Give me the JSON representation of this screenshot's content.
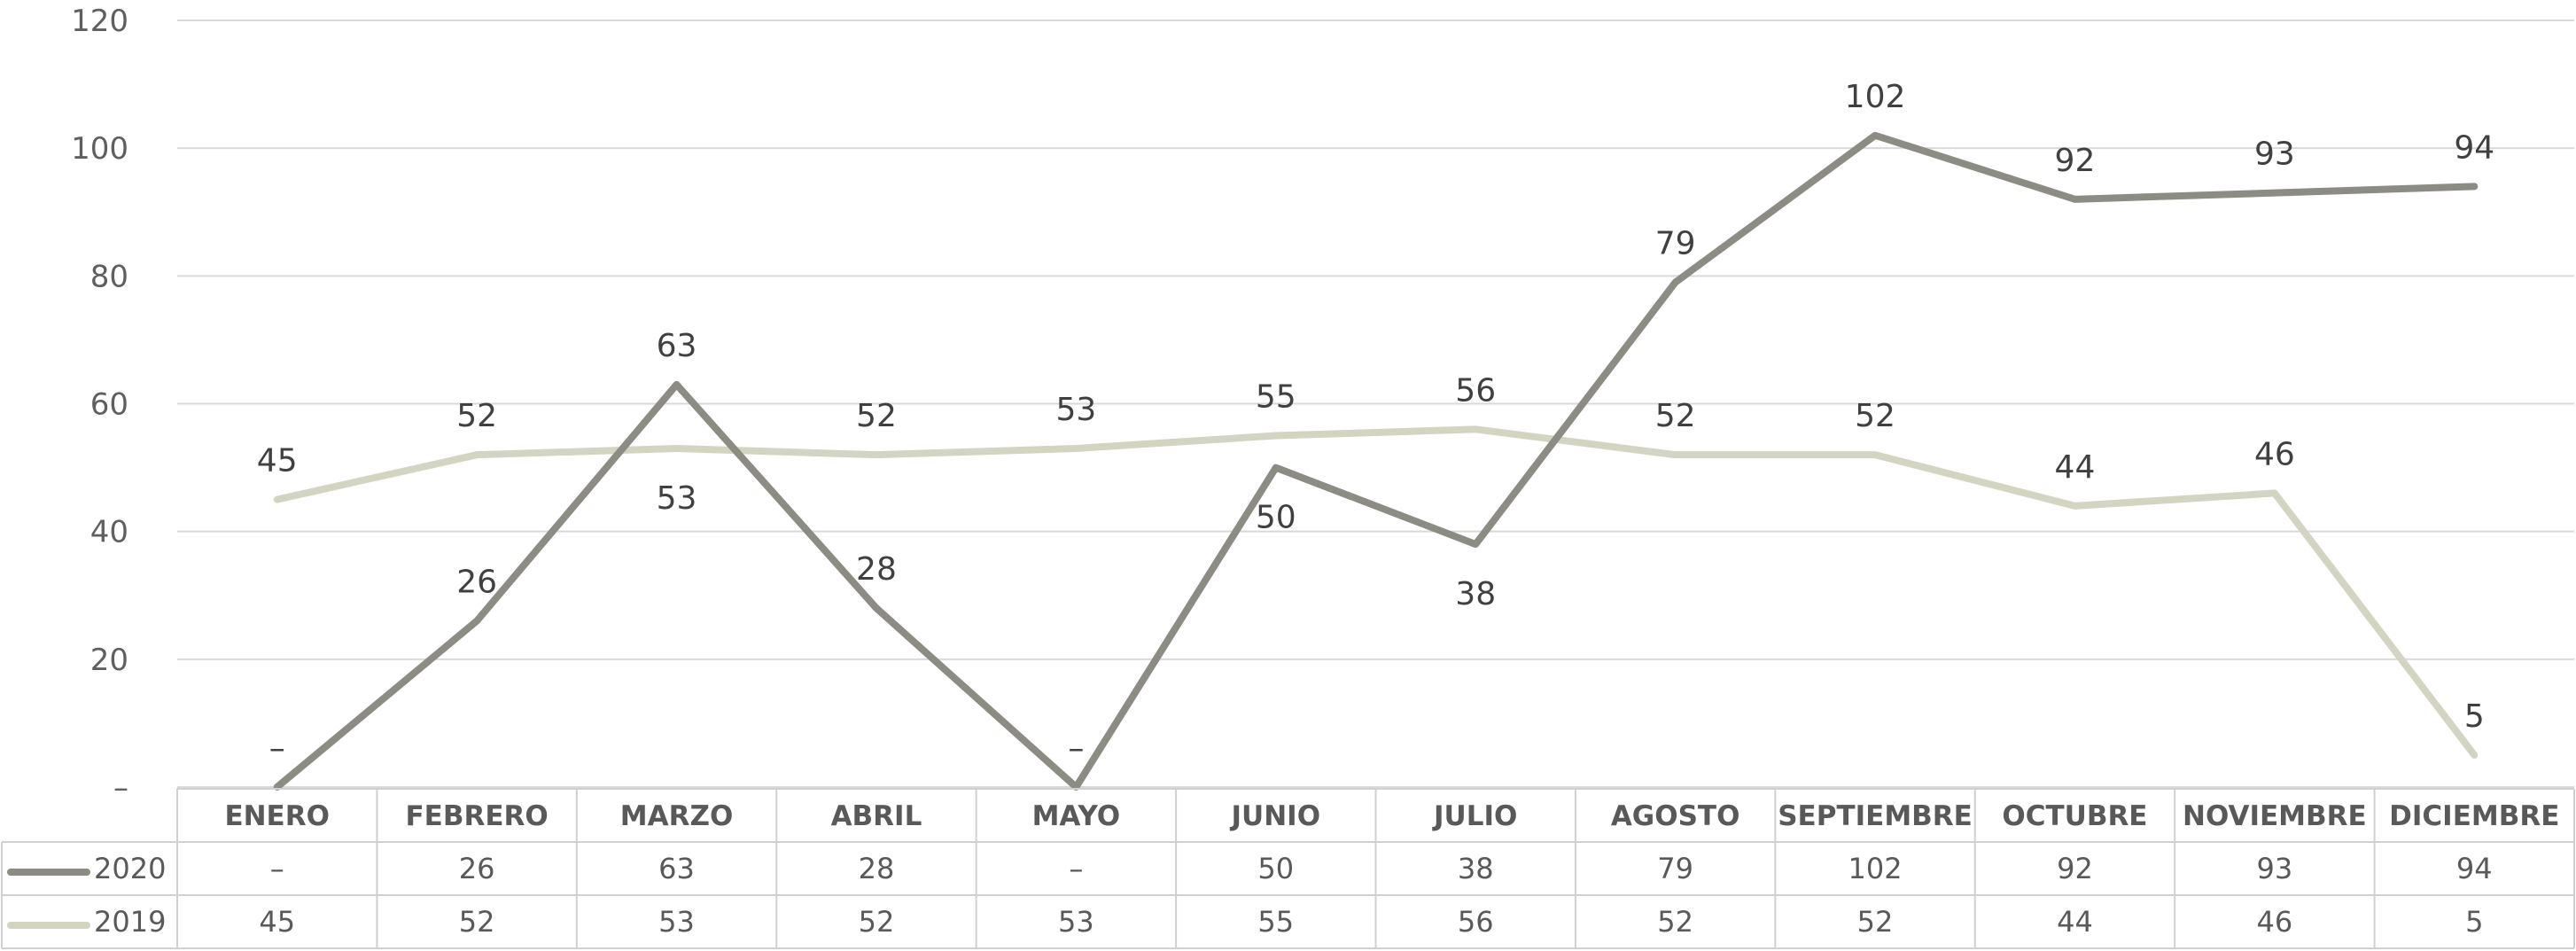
{
  "chart_data": {
    "type": "line",
    "title": "",
    "xlabel": "",
    "ylabel": "",
    "categories": [
      "ENERO",
      "FEBRERO",
      "MARZO",
      "ABRIL",
      "MAYO",
      "JUNIO",
      "JULIO",
      "AGOSTO",
      "SEPTIEMBRE",
      "OCTUBRE",
      "NOVIEMBRE",
      "DICIEMBRE"
    ],
    "y_ticks": [
      0,
      20,
      40,
      60,
      80,
      100,
      120
    ],
    "y_tick_labels": [
      "–",
      "20",
      "40",
      "60",
      "80",
      "100",
      "120"
    ],
    "ylim": [
      0,
      120
    ],
    "grid": true,
    "legend": "data-table",
    "series": [
      {
        "name": "2020",
        "color": "#8c8c84",
        "values": [
          0,
          26,
          63,
          28,
          0,
          50,
          38,
          79,
          102,
          92,
          93,
          94
        ],
        "labels": [
          "–",
          "26",
          "63",
          "28",
          "–",
          "50",
          "38",
          "79",
          "102",
          "92",
          "93",
          "94"
        ],
        "label_position": [
          "above",
          "above",
          "above",
          "above",
          "above",
          "below",
          "below",
          "above",
          "above",
          "above",
          "above",
          "above"
        ]
      },
      {
        "name": "2019",
        "color": "#d4d4c2",
        "values": [
          45,
          52,
          53,
          52,
          53,
          55,
          56,
          52,
          52,
          44,
          46,
          5
        ],
        "labels": [
          "45",
          "52",
          "53",
          "52",
          "53",
          "55",
          "56",
          "52",
          "52",
          "44",
          "46",
          "5"
        ],
        "label_position": [
          "above",
          "above",
          "below",
          "above",
          "above",
          "above",
          "above",
          "above",
          "above",
          "above",
          "above",
          "above"
        ]
      }
    ]
  }
}
